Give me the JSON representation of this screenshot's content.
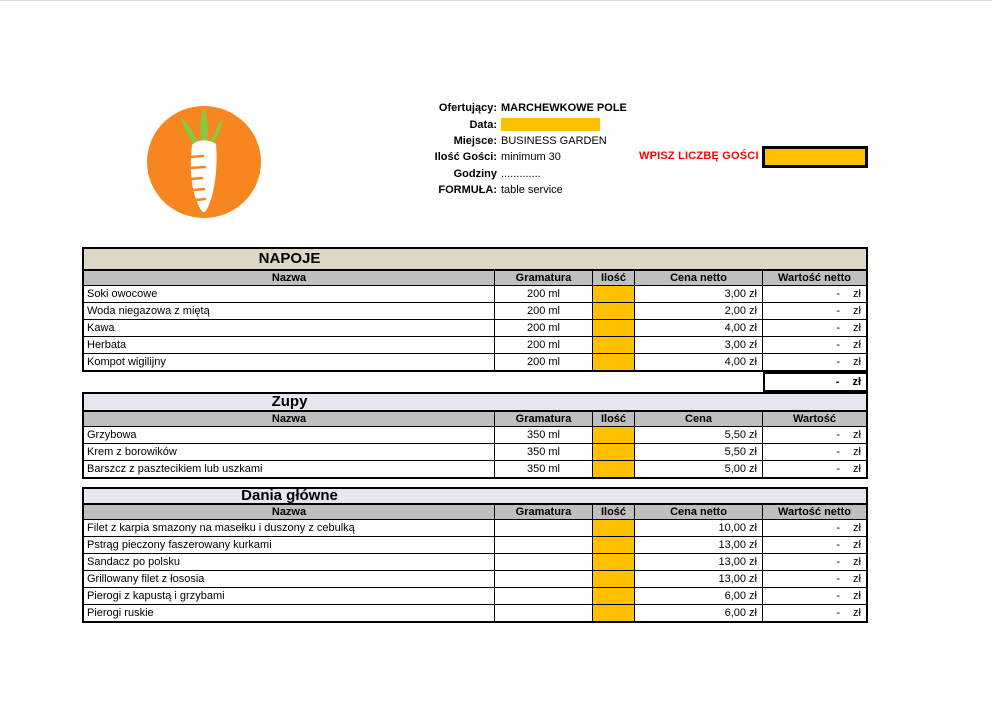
{
  "logo": {
    "circle_color": "#f6861f",
    "carrot_color": "#ffffff",
    "leaves_color": "#8cc63f"
  },
  "colors": {
    "accent_gold": "#ffc000",
    "header_gray": "#bfbfbf",
    "napoje_title_bg": "#ddd8c4",
    "light_title_bg": "#e7e6f0",
    "prompt_red": "#ff0000"
  },
  "offer_header": {
    "fields": [
      {
        "label": "Ofertujący:",
        "value": "MARCHEWKOWE POLE",
        "bold_value": true
      },
      {
        "label": "Data:",
        "value": "",
        "input_box": true
      },
      {
        "label": "Miejsce:",
        "value": "BUSINESS GARDEN"
      },
      {
        "label": "Ilość Gości:",
        "value": "minimum 30"
      },
      {
        "label": "Godziny",
        "value": "............."
      },
      {
        "label": "FORMUŁA:",
        "value": "table service"
      }
    ],
    "guests_prompt": "WPISZ LICZBĘ GOŚCI",
    "guests_input_value": "",
    "date_input_value": ""
  },
  "menu_sections": [
    {
      "title": "NAPOJE",
      "title_bg": "#ddd8c4",
      "columns": [
        "Nazwa",
        "Gramatura",
        "Ilość",
        "Cena netto",
        "Wartość netto"
      ],
      "rows": [
        {
          "name": "Soki owocowe",
          "gramatura": "200 ml",
          "qty": "",
          "price": "3,00 zł",
          "value_dash": "-",
          "value_unit": "zł"
        },
        {
          "name": "Woda niegazowa z miętą",
          "gramatura": "200 ml",
          "qty": "",
          "price": "2,00 zł",
          "value_dash": "-",
          "value_unit": "zł"
        },
        {
          "name": "Kawa",
          "gramatura": "200 ml",
          "qty": "",
          "price": "4,00 zł",
          "value_dash": "-",
          "value_unit": "zł"
        },
        {
          "name": "Herbata",
          "gramatura": "200 ml",
          "qty": "",
          "price": "3,00 zł",
          "value_dash": "-",
          "value_unit": "zł"
        },
        {
          "name": "Kompot wigilijny",
          "gramatura": "200 ml",
          "qty": "",
          "price": "4,00 zł",
          "value_dash": "-",
          "value_unit": "zł"
        }
      ],
      "total": {
        "dash": "-",
        "unit": "zł"
      }
    },
    {
      "title": "Zupy",
      "title_bg": "#e7e6f0",
      "columns": [
        "Nazwa",
        "Gramatura",
        "Ilość",
        "Cena",
        "Wartość"
      ],
      "rows": [
        {
          "name": "Grzybowa",
          "gramatura": "350 ml",
          "qty": "",
          "price": "5,50 zł",
          "value_dash": "-",
          "value_unit": "zł"
        },
        {
          "name": "Krem z borowików",
          "gramatura": "350 ml",
          "qty": "",
          "price": "5,50 zł",
          "value_dash": "-",
          "value_unit": "zł"
        },
        {
          "name": "Barszcz z pasztecikiem lub uszkami",
          "gramatura": "350 ml",
          "qty": "",
          "price": "5,00 zł",
          "value_dash": "-",
          "value_unit": "zł"
        }
      ],
      "total": null
    },
    {
      "title": "Dania główne",
      "title_bg": "#e7e6f0",
      "columns": [
        "Nazwa",
        "Gramatura",
        "Ilość",
        "Cena netto",
        "Wartość netto"
      ],
      "rows": [
        {
          "name": "Filet z karpia smazony na masełku i duszony z cebulką",
          "gramatura": "",
          "qty": "",
          "price": "10,00 zł",
          "value_dash": "-",
          "value_unit": "zł"
        },
        {
          "name": "Pstrąg pieczony faszerowany kurkami",
          "gramatura": "",
          "qty": "",
          "price": "13,00 zł",
          "value_dash": "-",
          "value_unit": "zł"
        },
        {
          "name": "Sandacz po polsku",
          "gramatura": "",
          "qty": "",
          "price": "13,00 zł",
          "value_dash": "-",
          "value_unit": "zł"
        },
        {
          "name": "Grillowany filet z łososia",
          "gramatura": "",
          "qty": "",
          "price": "13,00 zł",
          "value_dash": "-",
          "value_unit": "zł"
        },
        {
          "name": "Pierogi z kapustą i grzybami",
          "gramatura": "",
          "qty": "",
          "price": "6,00 zł",
          "value_dash": "-",
          "value_unit": "zł"
        },
        {
          "name": "Pierogi ruskie",
          "gramatura": "",
          "qty": "",
          "price": "6,00 zł",
          "value_dash": "-",
          "value_unit": "zł"
        }
      ],
      "total": null
    }
  ]
}
